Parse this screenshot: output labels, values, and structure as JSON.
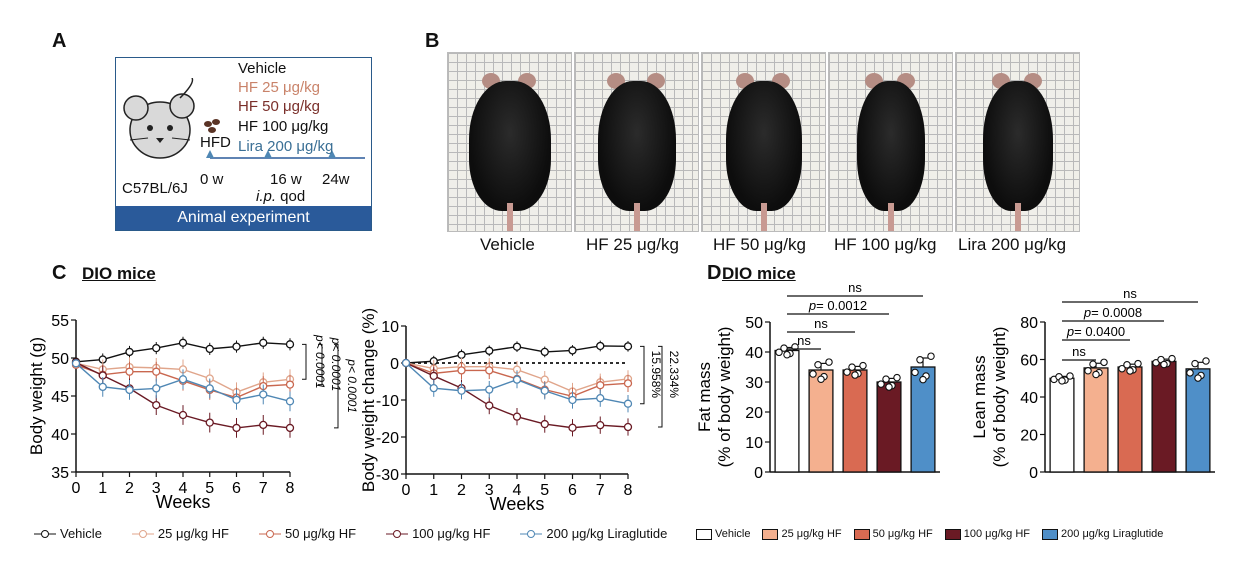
{
  "panels": {
    "a": "A",
    "b": "B",
    "c": "C",
    "d": "D"
  },
  "schematic": {
    "groups": [
      "Vehicle",
      "HF 25 μg/kg",
      "HF 50 μg/kg",
      "HF 100 μg/kg",
      "Lira 200 μg/kg"
    ],
    "group_colors": [
      "#111111",
      "#c9836a",
      "#7a2f2a",
      "#111111",
      "#3a6f95"
    ],
    "diet": "HFD",
    "strain": "C57BL/6J",
    "t0": "0 w",
    "t16": "16 w",
    "t24": "24w",
    "route_italic": "i.p.",
    "route_rest": " qod",
    "footer": "Animal experiment"
  },
  "photos": {
    "labels": [
      "Vehicle",
      "HF 25 μg/kg",
      "HF 50 μg/kg",
      "HF 100 μg/kg",
      "Lira 200 μg/kg"
    ]
  },
  "section_c": {
    "title": "DIO mice"
  },
  "section_d": {
    "title": "DIO mice"
  },
  "colors": {
    "vehicle": "#111111",
    "hf25": "#e0a58b",
    "hf50": "#c9674f",
    "hf100": "#6a1a24",
    "lira": "#4f87b4"
  },
  "legend_c": [
    "Vehicle",
    "25 μg/kg HF",
    "50 μg/kg HF",
    "100 μg/kg HF",
    "200 μg/kg Liraglutide"
  ],
  "legend_d": [
    "Vehicle",
    "25 μg/kg HF",
    "50 μg/kg HF",
    "100 μg/kg HF",
    "200 μg/kg Liraglutide"
  ],
  "chart_data": [
    {
      "type": "line",
      "xlabel": "Weeks",
      "ylabel": "Body weight (g)",
      "xlim": [
        0,
        8
      ],
      "ylim": [
        35,
        55
      ],
      "xticks": [
        "0",
        "1",
        "2",
        "3",
        "4",
        "5",
        "6",
        "7",
        "8"
      ],
      "yticks": [
        "35",
        "40",
        "45",
        "50",
        "55"
      ],
      "x": [
        0,
        1,
        2,
        3,
        4,
        5,
        6,
        7,
        8
      ],
      "series": [
        {
          "name": "Vehicle",
          "values": [
            49.5,
            49.8,
            50.8,
            51.3,
            52.0,
            51.2,
            51.5,
            52.0,
            51.8
          ]
        },
        {
          "name": "25 μg/kg HF",
          "values": [
            49.3,
            48.5,
            48.8,
            48.7,
            48.5,
            47.3,
            45.5,
            46.8,
            47.2
          ]
        },
        {
          "name": "50 μg/kg HF",
          "values": [
            49.1,
            47.8,
            48.2,
            48.2,
            47.0,
            45.8,
            44.8,
            46.3,
            46.5
          ]
        },
        {
          "name": "100 μg/kg HF",
          "values": [
            49.4,
            47.7,
            46.0,
            43.8,
            42.5,
            41.5,
            40.8,
            41.2,
            40.8
          ]
        },
        {
          "name": "200 μg/kg Liraglutide",
          "values": [
            49.3,
            46.2,
            45.8,
            46.0,
            47.2,
            46.0,
            44.5,
            45.2,
            44.3
          ]
        }
      ],
      "annotations": [
        "p< 0.0001",
        "p< 0.0001",
        "p< 0.0001"
      ]
    },
    {
      "type": "line",
      "xlabel": "Weeks",
      "ylabel": "Body weight change (%)",
      "xlim": [
        0,
        8
      ],
      "ylim": [
        -30,
        10
      ],
      "xticks": [
        "0",
        "1",
        "2",
        "3",
        "4",
        "5",
        "6",
        "7",
        "8"
      ],
      "yticks": [
        "-30",
        "-20",
        "-10",
        "0",
        "10"
      ],
      "x": [
        0,
        1,
        2,
        3,
        4,
        5,
        6,
        7,
        8
      ],
      "series": [
        {
          "name": "Vehicle",
          "values": [
            0,
            0.5,
            2.2,
            3.3,
            4.4,
            3.0,
            3.4,
            4.6,
            4.5
          ]
        },
        {
          "name": "25 μg/kg HF",
          "values": [
            0,
            -1.5,
            -1.0,
            -1.0,
            -1.8,
            -4.5,
            -7.7,
            -5.2,
            -4.3
          ]
        },
        {
          "name": "50 μg/kg HF",
          "values": [
            0,
            -2.8,
            -2.0,
            -2.0,
            -4.3,
            -7.2,
            -9.0,
            -6.0,
            -5.5
          ]
        },
        {
          "name": "100 μg/kg HF",
          "values": [
            0,
            -3.5,
            -6.8,
            -11.5,
            -14.5,
            -16.5,
            -17.5,
            -16.8,
            -17.3
          ]
        },
        {
          "name": "200 μg/kg Liraglutide",
          "values": [
            0,
            -6.8,
            -7.5,
            -7.2,
            -4.5,
            -7.5,
            -10.0,
            -9.5,
            -11.0
          ]
        }
      ],
      "annotations": [
        "15.958%",
        "22.334%"
      ]
    },
    {
      "type": "bar",
      "ylabel": "Fat mass (% of body weight)",
      "ylim": [
        0,
        50
      ],
      "yticks": [
        "0",
        "10",
        "20",
        "30",
        "40",
        "50"
      ],
      "categories": [
        "Vehicle",
        "25 μg/kg HF",
        "50 μg/kg HF",
        "100 μg/kg HF",
        "200 μg/kg Liraglutide"
      ],
      "values": [
        40.5,
        34.0,
        34.0,
        30.0,
        35.0
      ],
      "errors": [
        1.0,
        2.2,
        1.2,
        1.2,
        3.0
      ],
      "comparisons": [
        "ns",
        "p= 0.0012",
        "ns",
        "ns"
      ]
    },
    {
      "type": "bar",
      "ylabel": "Lean mass (% of body weight)",
      "ylim": [
        0,
        80
      ],
      "yticks": [
        "0",
        "20",
        "40",
        "60",
        "80"
      ],
      "categories": [
        "Vehicle",
        "25 μg/kg HF",
        "50 μg/kg HF",
        "100 μg/kg HF",
        "200 μg/kg Liraglutide"
      ],
      "values": [
        50.0,
        55.5,
        56.0,
        59.0,
        55.0
      ],
      "errors": [
        1.0,
        2.5,
        1.5,
        1.2,
        3.5
      ],
      "comparisons": [
        "ns",
        "p= 0.0008",
        "p= 0.0400",
        "ns"
      ]
    }
  ]
}
